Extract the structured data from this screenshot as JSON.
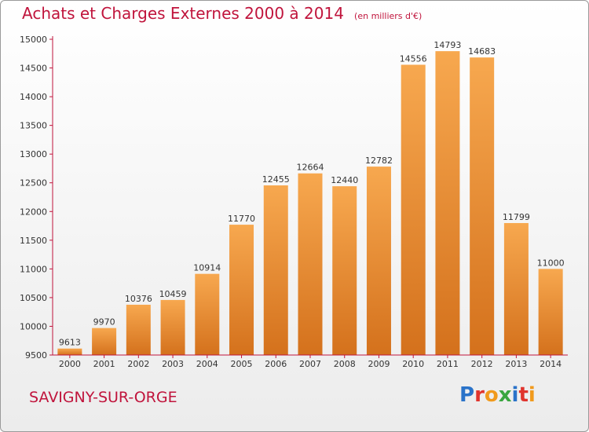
{
  "chart_data": {
    "type": "bar",
    "title": "Achats et Charges Externes 2000 à 2014",
    "unit_note": "(en milliers d'€)",
    "categories": [
      "2000",
      "2001",
      "2002",
      "2003",
      "2004",
      "2005",
      "2006",
      "2007",
      "2008",
      "2009",
      "2010",
      "2011",
      "2012",
      "2013",
      "2014"
    ],
    "values": [
      9613,
      9970,
      10376,
      10459,
      10914,
      11770,
      12455,
      12664,
      12440,
      12782,
      14556,
      14793,
      14683,
      11799,
      11000
    ],
    "ylim": [
      9500,
      15000
    ],
    "yticks": [
      9500,
      10000,
      10500,
      11000,
      11500,
      12000,
      12500,
      13000,
      13500,
      14000,
      14500,
      15000
    ],
    "grid": false,
    "colors": {
      "bar_light": "#f7a84f",
      "bar_dark": "#d4711c",
      "axis": "#c0143c",
      "title": "#c0143c"
    }
  },
  "footer": {
    "city": "SAVIGNY-SUR-ORGE"
  },
  "logo": {
    "letters": [
      "P",
      "r",
      "o",
      "x",
      "i",
      "t",
      "i"
    ],
    "letter_colors": [
      "#2a73c9",
      "#e0342d",
      "#f19a1c",
      "#3aa640",
      "#2a73c9",
      "#e0342d",
      "#f19a1c"
    ]
  }
}
